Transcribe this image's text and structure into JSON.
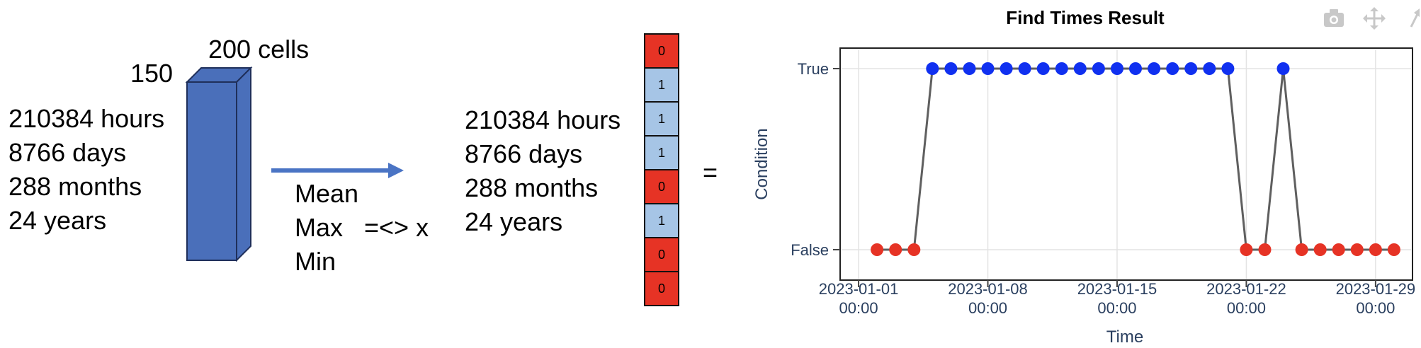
{
  "diagram": {
    "input_block": {
      "width_label": "200 cells",
      "depth_label": "150",
      "time_dimensions": [
        "210384 hours",
        "8766 days",
        "288 months",
        "24 years"
      ],
      "fill_color": "#4a6fba",
      "edge_color": "#1f2f5a"
    },
    "operation": {
      "arrow_color": "#4a74c4",
      "functions": [
        "Mean",
        "Max",
        "Min"
      ],
      "comparison": "=<> x"
    },
    "output": {
      "time_dimensions": [
        "210384 hours",
        "8766 days",
        "288 months",
        "24 years"
      ],
      "cells": [
        "0",
        "1",
        "1",
        "1",
        "0",
        "1",
        "0",
        "0"
      ],
      "true_color": "#a6c5e6",
      "false_color": "#e63325",
      "equals_sign": "="
    }
  },
  "toolbar": {
    "icons": [
      "camera-icon",
      "pan-icon",
      "expand-icon"
    ]
  },
  "chart_data": {
    "type": "scatter",
    "mode": "lines+markers",
    "title": "Find Times Result",
    "xlabel": "Time",
    "ylabel": "Condition",
    "x_tick_labels": [
      {
        "date": "2023-01-01",
        "line1": "2023-01-01",
        "line2": "00:00"
      },
      {
        "date": "2023-01-08",
        "line1": "2023-01-08",
        "line2": "00:00"
      },
      {
        "date": "2023-01-15",
        "line1": "2023-01-15",
        "line2": "00:00"
      },
      {
        "date": "2023-01-22",
        "line1": "2023-01-22",
        "line2": "00:00"
      },
      {
        "date": "2023-01-29",
        "line1": "2023-01-29",
        "line2": "00:00"
      }
    ],
    "y_categories": [
      "False",
      "True"
    ],
    "points": [
      {
        "x": "2023-01-02",
        "y": "False"
      },
      {
        "x": "2023-01-03",
        "y": "False"
      },
      {
        "x": "2023-01-04",
        "y": "False"
      },
      {
        "x": "2023-01-05",
        "y": "True"
      },
      {
        "x": "2023-01-06",
        "y": "True"
      },
      {
        "x": "2023-01-07",
        "y": "True"
      },
      {
        "x": "2023-01-08",
        "y": "True"
      },
      {
        "x": "2023-01-09",
        "y": "True"
      },
      {
        "x": "2023-01-10",
        "y": "True"
      },
      {
        "x": "2023-01-11",
        "y": "True"
      },
      {
        "x": "2023-01-12",
        "y": "True"
      },
      {
        "x": "2023-01-13",
        "y": "True"
      },
      {
        "x": "2023-01-14",
        "y": "True"
      },
      {
        "x": "2023-01-15",
        "y": "True"
      },
      {
        "x": "2023-01-16",
        "y": "True"
      },
      {
        "x": "2023-01-17",
        "y": "True"
      },
      {
        "x": "2023-01-18",
        "y": "True"
      },
      {
        "x": "2023-01-19",
        "y": "True"
      },
      {
        "x": "2023-01-20",
        "y": "True"
      },
      {
        "x": "2023-01-21",
        "y": "True"
      },
      {
        "x": "2023-01-22",
        "y": "False"
      },
      {
        "x": "2023-01-23",
        "y": "False"
      },
      {
        "x": "2023-01-24",
        "y": "True"
      },
      {
        "x": "2023-01-25",
        "y": "False"
      },
      {
        "x": "2023-01-26",
        "y": "False"
      },
      {
        "x": "2023-01-27",
        "y": "False"
      },
      {
        "x": "2023-01-28",
        "y": "False"
      },
      {
        "x": "2023-01-29",
        "y": "False"
      },
      {
        "x": "2023-01-30",
        "y": "False"
      }
    ],
    "xlim": [
      "2022-12-31",
      "2023-01-31"
    ],
    "grid": true,
    "line_color": "#5f5f5f",
    "true_color": "#1030f0",
    "false_color": "#e63325"
  }
}
